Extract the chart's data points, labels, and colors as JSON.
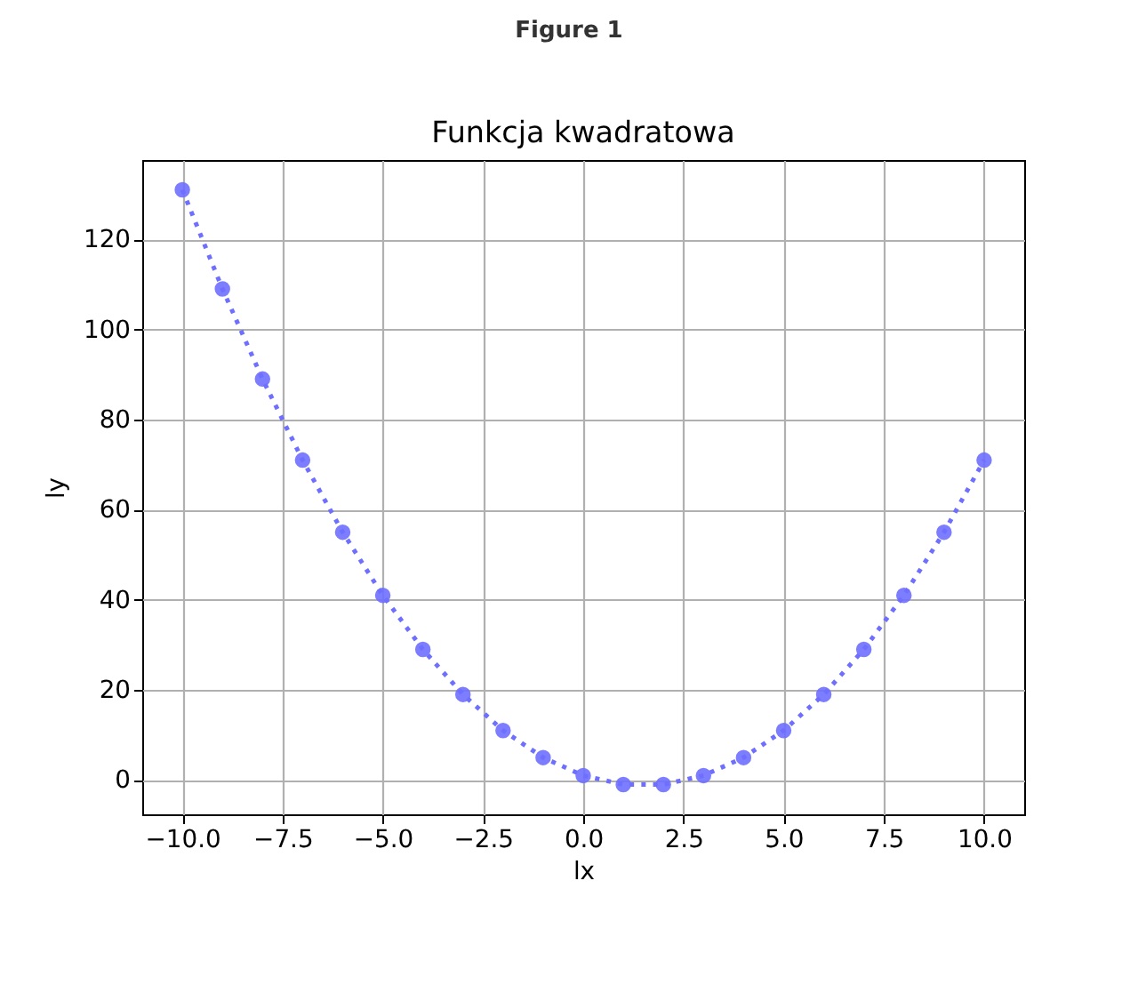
{
  "chart_data": {
    "type": "line",
    "title": "Funkcja kwadratowa",
    "xlabel": "lx",
    "ylabel": "ly",
    "annotations": [
      "Figure 1"
    ],
    "x": [
      -10,
      -9,
      -8,
      -7,
      -6,
      -5,
      -4,
      -3,
      -2,
      -1,
      0,
      1,
      2,
      3,
      4,
      5,
      6,
      7,
      8,
      9,
      10
    ],
    "series": [
      {
        "color": "#6f6fff",
        "values": [
          131,
          109,
          89,
          71,
          55,
          41,
          29,
          19,
          11,
          5,
          1,
          -1,
          -1,
          1,
          5,
          11,
          19,
          29,
          41,
          55,
          71
        ]
      }
    ],
    "xlim": [
      -11,
      11
    ],
    "ylim": [
      -7.6,
      137.6
    ],
    "xticks": [
      {
        "value": -10,
        "label": "−10.0"
      },
      {
        "value": -7.5,
        "label": "−7.5"
      },
      {
        "value": -5,
        "label": "−5.0"
      },
      {
        "value": -2.5,
        "label": "−2.5"
      },
      {
        "value": 0,
        "label": "0.0"
      },
      {
        "value": 2.5,
        "label": "2.5"
      },
      {
        "value": 5,
        "label": "5.0"
      },
      {
        "value": 7.5,
        "label": "7.5"
      },
      {
        "value": 10,
        "label": "10.0"
      }
    ],
    "yticks": [
      0,
      20,
      40,
      60,
      80,
      100,
      120
    ],
    "grid": true,
    "marker": "circle",
    "line_style": "dotted"
  }
}
